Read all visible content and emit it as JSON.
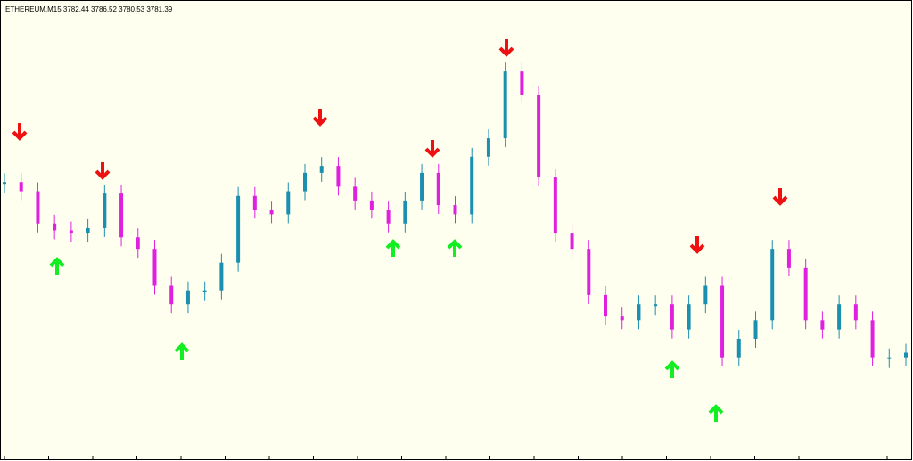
{
  "chart_data": {
    "type": "candlestick",
    "title": "ETHEREUM,M15  3782.44 3786.52 3780.53 3781.39",
    "up_color": "#1a8fb0",
    "down_color": "#e020e0",
    "ylim": [
      3736,
      3936
    ],
    "values": [
      3857,
      3853,
      3839,
      3836,
      3835,
      3837,
      3852,
      3833,
      3828,
      3812,
      3804,
      3810,
      3810,
      3822,
      3851,
      3845,
      3843,
      3853,
      3861,
      3864,
      3855,
      3849,
      3845,
      3839,
      3849,
      3861,
      3847,
      3843,
      3868,
      3876,
      3905,
      3895,
      3859,
      3835,
      3828,
      3808,
      3799,
      3797,
      3804,
      3804,
      3793,
      3804,
      3812,
      3781,
      3789,
      3797,
      3828,
      3820,
      3797,
      3793,
      3804,
      3797,
      3781,
      3781,
      3783
    ]
  }
}
